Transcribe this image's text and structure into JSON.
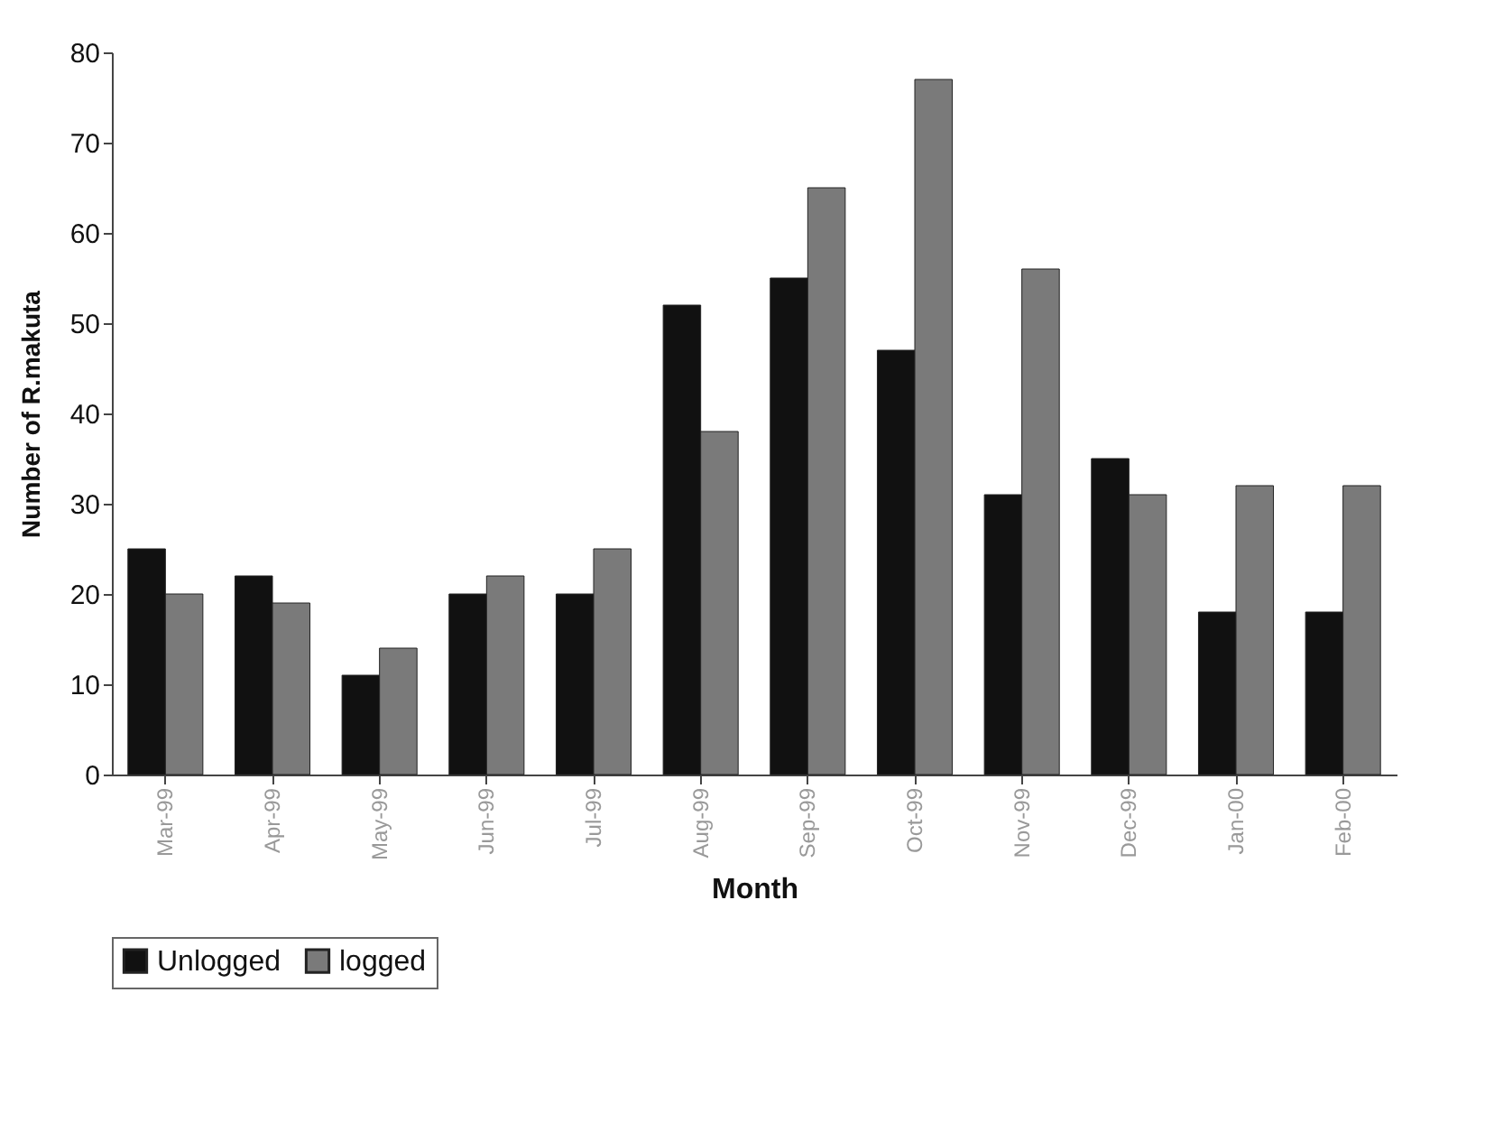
{
  "chart_data": {
    "type": "bar",
    "xlabel": "Month",
    "ylabel": "Number of R.makuta",
    "categories": [
      "Mar-99",
      "Apr-99",
      "May-99",
      "Jun-99",
      "Jul-99",
      "Aug-99",
      "Sep-99",
      "Oct-99",
      "Nov-99",
      "Dec-99",
      "Jan-00",
      "Feb-00"
    ],
    "series": [
      {
        "name": "Unlogged",
        "color": "#111111",
        "values": [
          25,
          22,
          11,
          20,
          20,
          52,
          55,
          47,
          31,
          35,
          18,
          18
        ]
      },
      {
        "name": "logged",
        "color": "#7a7a7a",
        "values": [
          20,
          19,
          14,
          22,
          25,
          38,
          65,
          77,
          56,
          31,
          32,
          32
        ]
      }
    ],
    "ylim": [
      0,
      80
    ],
    "yticks": [
      0,
      10,
      20,
      30,
      40,
      50,
      60,
      70,
      80
    ],
    "grid": false,
    "legend": "bottom"
  }
}
